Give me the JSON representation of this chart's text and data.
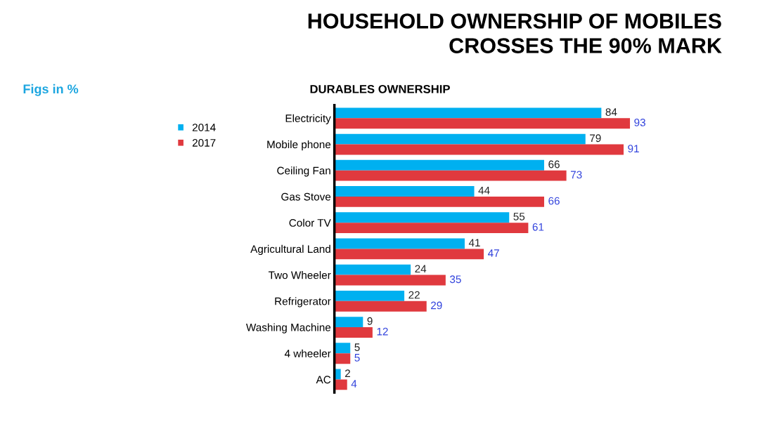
{
  "chart_data": {
    "type": "bar",
    "orientation": "horizontal",
    "title": "HOUSEHOLD OWNERSHIP OF MOBILES\nCROSSES THE 90% MARK",
    "subtitle": "DURABLES OWNERSHIP",
    "annotations": [
      "Figs in %"
    ],
    "categories": [
      "Electricity",
      "Mobile phone",
      "Ceiling Fan",
      "Gas Stove",
      "Color TV",
      "Agricultural Land",
      "Two Wheeler",
      "Refrigerator",
      "Washing Machine",
      "4 wheeler",
      "AC"
    ],
    "series": [
      {
        "name": "2014",
        "color": "#00b0f0",
        "values": [
          84,
          79,
          66,
          44,
          55,
          41,
          24,
          22,
          9,
          5,
          2
        ]
      },
      {
        "name": "2017",
        "color": "#e0393e",
        "values": [
          93,
          91,
          73,
          66,
          61,
          47,
          35,
          29,
          12,
          5,
          4
        ]
      }
    ],
    "data_labels": true,
    "legend": "top left",
    "grid": false,
    "tick_labels": "y"
  }
}
